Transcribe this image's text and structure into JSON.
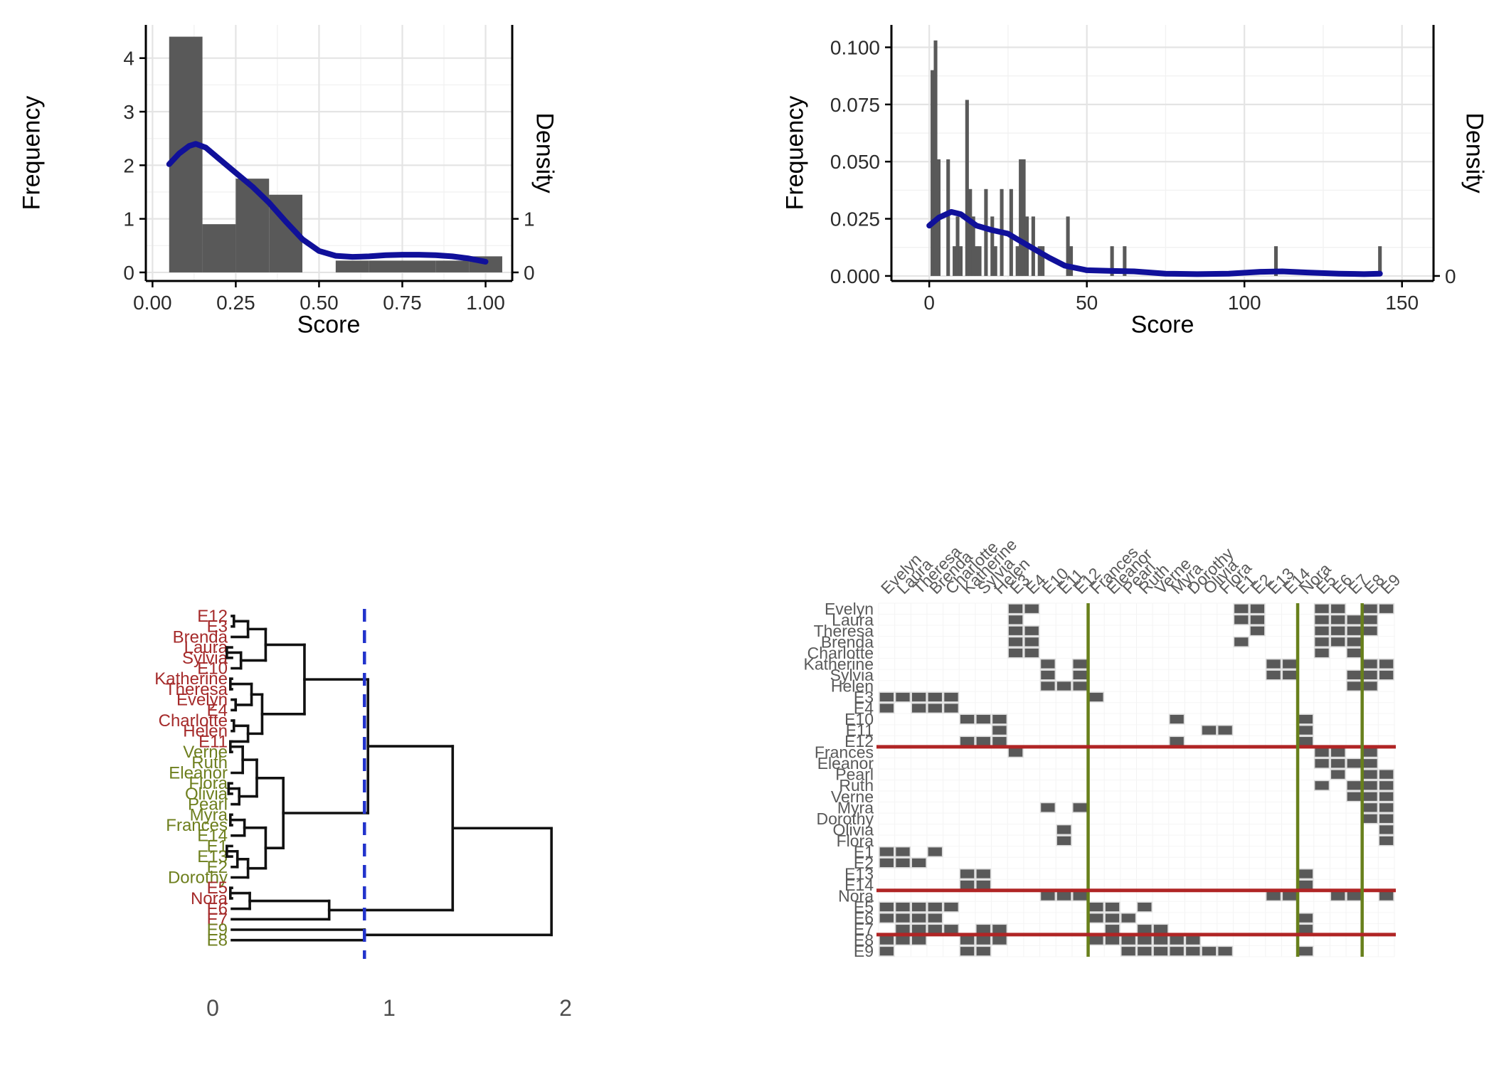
{
  "colors": {
    "bar": "#595959",
    "density_line": "#10109a",
    "grid_major": "#e4e4e4",
    "grid_minor": "#f2f2f2",
    "axis_line": "#000000",
    "tick_text": "#2b2b2b",
    "dendro_line": "#111111",
    "dendro_red": "#a52a2a",
    "dendro_olive": "#6e7f1e",
    "cut_line_blue": "#2233cc",
    "matrix_cell": "#595959",
    "matrix_cell_border": "#d9d9d9",
    "matrix_label": "#595959",
    "matrix_red_line": "#b02525",
    "matrix_olive_line": "#68801c",
    "small_tick_text": "#4d4d4d"
  },
  "chart_data": [
    {
      "type": "bar",
      "subtype": "histogram_with_density",
      "panel": "top_left",
      "xlabel": "Score",
      "ylabel_left": "Frequency",
      "ylabel_right": "Density",
      "xlim": [
        -0.02,
        1.08
      ],
      "ylim": [
        -0.16,
        4.62
      ],
      "xticks": [
        0.0,
        0.25,
        0.5,
        0.75,
        1.0
      ],
      "xtick_labels": [
        "0.00",
        "0.25",
        "0.50",
        "0.75",
        "1.00"
      ],
      "yticks": [
        0,
        1,
        2,
        3,
        4
      ],
      "ytick_labels": [
        "0",
        "1",
        "2",
        "3",
        "4"
      ],
      "right_ticks": [
        0,
        1
      ],
      "right_tick_labels": [
        "0",
        "1"
      ],
      "bars": [
        [
          0.05,
          0.15,
          4.4
        ],
        [
          0.15,
          0.25,
          0.9
        ],
        [
          0.25,
          0.35,
          1.75
        ],
        [
          0.35,
          0.45,
          1.45
        ],
        [
          0.55,
          0.65,
          0.22
        ],
        [
          0.65,
          0.75,
          0.22
        ],
        [
          0.75,
          0.85,
          0.22
        ],
        [
          0.85,
          0.95,
          0.22
        ],
        [
          0.95,
          1.05,
          0.3
        ]
      ],
      "density": [
        [
          0.05,
          2.02
        ],
        [
          0.08,
          2.22
        ],
        [
          0.11,
          2.36
        ],
        [
          0.13,
          2.4
        ],
        [
          0.16,
          2.33
        ],
        [
          0.2,
          2.12
        ],
        [
          0.25,
          1.86
        ],
        [
          0.3,
          1.6
        ],
        [
          0.35,
          1.3
        ],
        [
          0.4,
          0.95
        ],
        [
          0.45,
          0.62
        ],
        [
          0.5,
          0.4
        ],
        [
          0.55,
          0.31
        ],
        [
          0.6,
          0.29
        ],
        [
          0.65,
          0.3
        ],
        [
          0.7,
          0.32
        ],
        [
          0.75,
          0.33
        ],
        [
          0.8,
          0.33
        ],
        [
          0.85,
          0.32
        ],
        [
          0.9,
          0.3
        ],
        [
          0.95,
          0.26
        ],
        [
          1.0,
          0.2
        ]
      ]
    },
    {
      "type": "bar",
      "subtype": "histogram_with_density",
      "panel": "top_right",
      "xlabel": "Score",
      "ylabel_left": "Frequency",
      "ylabel_right": "Density",
      "xlim": [
        -12,
        160
      ],
      "ylim": [
        -0.0022,
        0.1098
      ],
      "xticks": [
        0,
        50,
        100,
        150
      ],
      "xtick_labels": [
        "0",
        "50",
        "100",
        "150"
      ],
      "yticks": [
        0.0,
        0.025,
        0.05,
        0.075,
        0.1
      ],
      "ytick_labels": [
        "0.000",
        "0.025",
        "0.050",
        "0.075",
        "0.100"
      ],
      "right_ticks": [
        0
      ],
      "right_tick_labels": [
        "0"
      ],
      "bar_width": 1.15,
      "bars_xh": [
        [
          1,
          0.09
        ],
        [
          2,
          0.103
        ],
        [
          3,
          0.051
        ],
        [
          6,
          0.051
        ],
        [
          8,
          0.013
        ],
        [
          9,
          0.026
        ],
        [
          10,
          0.013
        ],
        [
          12,
          0.077
        ],
        [
          13,
          0.038
        ],
        [
          14,
          0.026
        ],
        [
          15,
          0.013
        ],
        [
          16,
          0.013
        ],
        [
          18,
          0.038
        ],
        [
          20,
          0.026
        ],
        [
          21,
          0.013
        ],
        [
          23,
          0.038
        ],
        [
          26,
          0.038
        ],
        [
          28,
          0.013
        ],
        [
          29,
          0.051
        ],
        [
          30,
          0.051
        ],
        [
          31,
          0.026
        ],
        [
          33,
          0.026
        ],
        [
          35,
          0.013
        ],
        [
          36,
          0.013
        ],
        [
          44,
          0.026
        ],
        [
          45,
          0.013
        ],
        [
          58,
          0.013
        ],
        [
          62,
          0.013
        ],
        [
          110,
          0.013
        ],
        [
          143,
          0.013
        ]
      ],
      "density": [
        [
          0,
          0.022
        ],
        [
          3,
          0.0255
        ],
        [
          7,
          0.028
        ],
        [
          10,
          0.027
        ],
        [
          15,
          0.022
        ],
        [
          20,
          0.02
        ],
        [
          25,
          0.0185
        ],
        [
          28,
          0.016
        ],
        [
          33,
          0.012
        ],
        [
          38,
          0.008
        ],
        [
          43,
          0.0045
        ],
        [
          50,
          0.0025
        ],
        [
          58,
          0.0022
        ],
        [
          65,
          0.002
        ],
        [
          75,
          0.001
        ],
        [
          85,
          0.0008
        ],
        [
          95,
          0.001
        ],
        [
          105,
          0.0018
        ],
        [
          112,
          0.002
        ],
        [
          120,
          0.0015
        ],
        [
          130,
          0.001
        ],
        [
          138,
          0.0008
        ],
        [
          143,
          0.001
        ]
      ]
    },
    {
      "type": "dendrogram",
      "panel": "bottom_left",
      "xticks": [
        0,
        1,
        2
      ],
      "xtick_labels": [
        "0",
        "1",
        "2"
      ],
      "cut_line_x": 0.86,
      "leaves": [
        {
          "label": "E12",
          "cls": "r"
        },
        {
          "label": "E3",
          "cls": "r"
        },
        {
          "label": "Brenda",
          "cls": "r"
        },
        {
          "label": "Laura",
          "cls": "r"
        },
        {
          "label": "Sylvia",
          "cls": "r"
        },
        {
          "label": "E10",
          "cls": "r"
        },
        {
          "label": "Katherine",
          "cls": "r"
        },
        {
          "label": "Theresa",
          "cls": "r"
        },
        {
          "label": "Evelyn",
          "cls": "r"
        },
        {
          "label": "E4",
          "cls": "r"
        },
        {
          "label": "Charlotte",
          "cls": "r"
        },
        {
          "label": "Helen",
          "cls": "r"
        },
        {
          "label": "E11",
          "cls": "r"
        },
        {
          "label": "Verne",
          "cls": "o"
        },
        {
          "label": "Ruth",
          "cls": "o"
        },
        {
          "label": "Eleanor",
          "cls": "o"
        },
        {
          "label": "Flora",
          "cls": "o"
        },
        {
          "label": "Olivia",
          "cls": "o"
        },
        {
          "label": "Pearl",
          "cls": "o"
        },
        {
          "label": "Myra",
          "cls": "o"
        },
        {
          "label": "Frances",
          "cls": "o"
        },
        {
          "label": "E14",
          "cls": "o"
        },
        {
          "label": "E1",
          "cls": "o"
        },
        {
          "label": "E13",
          "cls": "o"
        },
        {
          "label": "E2",
          "cls": "o"
        },
        {
          "label": "Dorothy",
          "cls": "o"
        },
        {
          "label": "E5",
          "cls": "r"
        },
        {
          "label": "Nora",
          "cls": "r"
        },
        {
          "label": "E6",
          "cls": "r"
        },
        {
          "label": "E7",
          "cls": "r"
        },
        {
          "label": "E9",
          "cls": "o"
        },
        {
          "label": "E8",
          "cls": "o"
        }
      ],
      "merges": [
        [
          1,
          2,
          0.12
        ],
        [
          -1,
          3,
          0.2
        ],
        [
          4,
          5,
          0.08
        ],
        [
          -3,
          6,
          0.16
        ],
        [
          -2,
          -4,
          0.3
        ],
        [
          7,
          8,
          0.1
        ],
        [
          9,
          10,
          0.13
        ],
        [
          -6,
          -7,
          0.22
        ],
        [
          11,
          12,
          0.12
        ],
        [
          -9,
          13,
          0.2
        ],
        [
          -8,
          -10,
          0.28
        ],
        [
          -5,
          -11,
          0.52
        ],
        [
          13,
          14,
          0.1
        ],
        [
          -13,
          16,
          0.17
        ],
        [
          17,
          18,
          0.09
        ],
        [
          -15,
          19,
          0.15
        ],
        [
          -14,
          -16,
          0.25
        ],
        [
          20,
          21,
          0.1
        ],
        [
          -18,
          22,
          0.18
        ],
        [
          23,
          24,
          0.08
        ],
        [
          -20,
          25,
          0.14
        ],
        [
          -21,
          26,
          0.2
        ],
        [
          -19,
          -22,
          0.3
        ],
        [
          -17,
          -23,
          0.4
        ],
        [
          -12,
          -24,
          0.88
        ],
        [
          27,
          28,
          0.1
        ],
        [
          -26,
          29,
          0.21
        ],
        [
          -27,
          30,
          0.66
        ],
        [
          -25,
          -28,
          1.36
        ],
        [
          31,
          32,
          0.86
        ],
        [
          -29,
          -30,
          1.92
        ]
      ]
    },
    {
      "type": "heatmap",
      "subtype": "blockmodel_adjacency",
      "panel": "bottom_right",
      "order": [
        "Evelyn",
        "Laura",
        "Theresa",
        "Brenda",
        "Charlotte",
        "Katherine",
        "Sylvia",
        "Helen",
        "E3",
        "E4",
        "E10",
        "E11",
        "E12",
        "Frances",
        "Eleanor",
        "Pearl",
        "Ruth",
        "Verne",
        "Myra",
        "Dorothy",
        "Olivia",
        "Flora",
        "E1",
        "E2",
        "E13",
        "E14",
        "Nora",
        "E5",
        "E6",
        "E7",
        "E8",
        "E9"
      ],
      "attendance": {
        "Evelyn": [
          1,
          2,
          3,
          4,
          5,
          6,
          8,
          9
        ],
        "Laura": [
          1,
          2,
          3,
          5,
          6,
          7,
          8
        ],
        "Theresa": [
          2,
          3,
          4,
          5,
          6,
          7,
          8
        ],
        "Brenda": [
          1,
          3,
          4,
          5,
          6,
          7
        ],
        "Charlotte": [
          3,
          4,
          5,
          7
        ],
        "Frances": [
          3,
          5,
          6,
          8
        ],
        "Eleanor": [
          5,
          6,
          7,
          8
        ],
        "Pearl": [
          6,
          8,
          9
        ],
        "Ruth": [
          5,
          7,
          8,
          9
        ],
        "Verne": [
          7,
          8,
          9
        ],
        "Myra": [
          8,
          9,
          10,
          12
        ],
        "Katherine": [
          8,
          9,
          10,
          12,
          13,
          14
        ],
        "Sylvia": [
          7,
          8,
          9,
          10,
          12,
          13,
          14
        ],
        "Nora": [
          6,
          7,
          9,
          10,
          11,
          12,
          13,
          14
        ],
        "Helen": [
          7,
          8,
          10,
          11,
          12
        ],
        "Dorothy": [
          8,
          9
        ],
        "Olivia": [
          9,
          11
        ],
        "Flora": [
          9,
          11
        ]
      },
      "cluster_breaks_after": [
        13,
        26,
        30
      ]
    }
  ]
}
